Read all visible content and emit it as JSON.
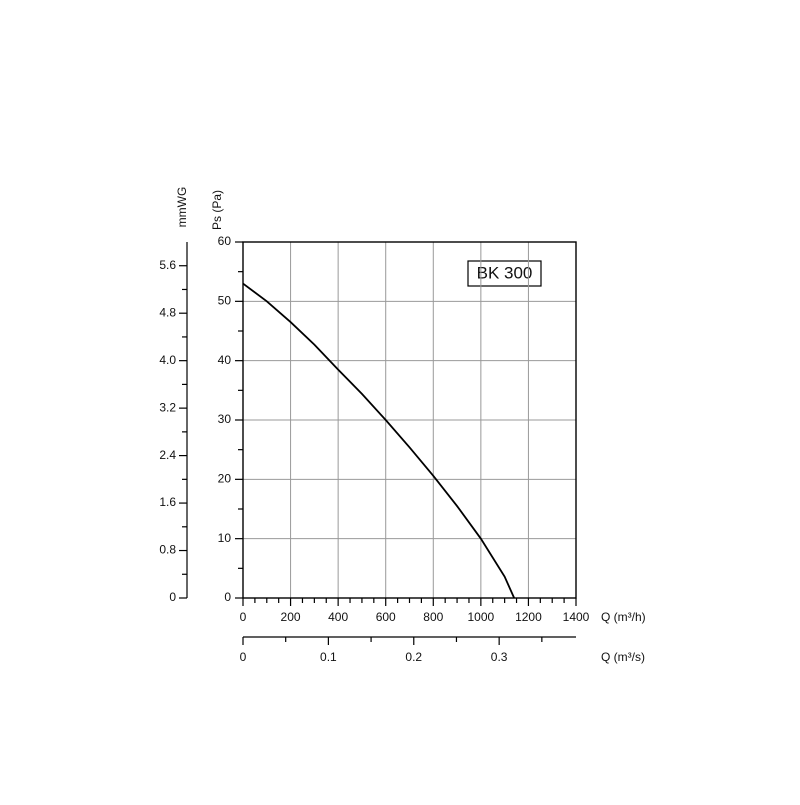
{
  "chart_data": {
    "type": "line",
    "title": "BK 300",
    "x_label": "Q (m³/h)",
    "y_label": "Ps (Pa)",
    "y2_label": "mmWG",
    "x2_label": "Q (m³/s)",
    "series": [
      {
        "name": "BK 300",
        "color": "#000000",
        "x": [
          0,
          100,
          200,
          300,
          400,
          500,
          600,
          700,
          800,
          900,
          1000,
          1100,
          1140
        ],
        "values": [
          53,
          50,
          46.5,
          42.7,
          38.5,
          34.4,
          30,
          25.4,
          20.6,
          15.5,
          10,
          3.6,
          0
        ]
      }
    ],
    "xlim": [
      0,
      1400
    ],
    "xticks": [
      0,
      200,
      400,
      600,
      800,
      1000,
      1200,
      1400
    ],
    "ylim": [
      0,
      60
    ],
    "yticks": [
      0,
      10,
      20,
      30,
      40,
      50,
      60
    ],
    "y2lim": [
      0,
      6
    ],
    "y2ticks": [
      0,
      0.8,
      1.6,
      2.4,
      {
        "value": 3.2,
        "label": "3.2"
      },
      {
        "value": 4,
        "label": "4.0"
      },
      4.8,
      5.6
    ],
    "x2lim": [
      0,
      0.39
    ],
    "x2ticks": [
      0,
      0.1,
      0.2,
      0.3
    ],
    "grid": true
  }
}
